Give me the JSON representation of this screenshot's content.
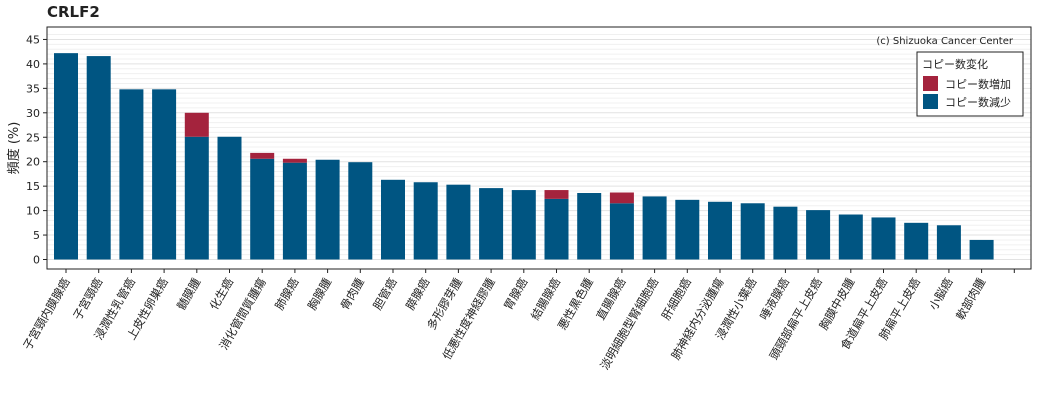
{
  "chart_data": {
    "type": "bar",
    "stacked": true,
    "title": "CRLF2",
    "ylabel": "頻度 (%)",
    "xlabel": "",
    "ylim": [
      0,
      47
    ],
    "yticks": [
      0,
      5,
      10,
      15,
      20,
      25,
      30,
      35,
      40,
      45
    ],
    "grid": true,
    "copyright": "(c) Shizuoka Cancer Center",
    "legend": {
      "title": "コピー数変化",
      "position": "top-right",
      "items": [
        {
          "label": "コピー数増加",
          "color": "#a4233d"
        },
        {
          "label": "コピー数減少",
          "color": "#005582"
        }
      ]
    },
    "categories": [
      "子宮頸内膜腺癌",
      "子宮頸癌",
      "浸潤性乳管癌",
      "上皮性卵巣癌",
      "髄膜腫",
      "化生癌",
      "消化管間質腫瘍",
      "肺腺癌",
      "胸腺腫",
      "骨肉腫",
      "胆管癌",
      "膵腺癌",
      "多形膠芽腫",
      "低悪性度神経膠腫",
      "胃腺癌",
      "結腸腺癌",
      "悪性黒色腫",
      "直腸腺癌",
      "淡明細胞型腎細胞癌",
      "肝細胞癌",
      "肺神経内分泌腫瘍",
      "浸潤性小葉癌",
      "唾液腺癌",
      "頭頸部扁平上皮癌",
      "胸膜中皮腫",
      "食道扁平上皮癌",
      "肺扁平上皮癌",
      "小脳癌",
      "軟部肉腫"
    ],
    "series": [
      {
        "name": "コピー数減少",
        "color": "#005582",
        "values": [
          42.2,
          41.6,
          34.8,
          34.8,
          25.1,
          25.1,
          20.6,
          19.8,
          20.4,
          19.9,
          16.3,
          15.8,
          15.3,
          14.6,
          14.2,
          12.4,
          13.6,
          11.5,
          12.9,
          12.2,
          11.8,
          11.5,
          10.8,
          10.1,
          9.2,
          8.6,
          7.5,
          7.0,
          4.0
        ]
      },
      {
        "name": "コピー数増加",
        "color": "#a4233d",
        "values": [
          0,
          0,
          0,
          0,
          4.9,
          0,
          1.2,
          0.8,
          0,
          0,
          0,
          0,
          0,
          0,
          0,
          1.8,
          0,
          2.2,
          0,
          0,
          0,
          0,
          0,
          0,
          0,
          0,
          0,
          0,
          0
        ]
      }
    ]
  }
}
